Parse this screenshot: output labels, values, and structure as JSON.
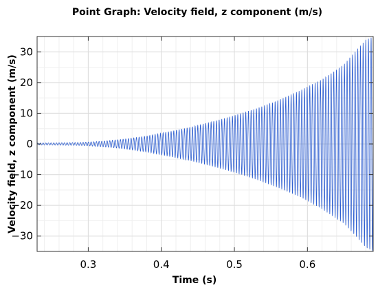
{
  "chart_data": {
    "type": "line",
    "title": "Point Graph: Velocity field, z component (m/s)",
    "xlabel": "Time (s)",
    "ylabel": "Velocity field, z component (m/s)",
    "xlim": [
      0.23,
      0.69
    ],
    "ylim": [
      -35,
      35
    ],
    "x_ticks": [
      0.3,
      0.4,
      0.5,
      0.6
    ],
    "x_tick_labels": [
      "0.3",
      "0.4",
      "0.5",
      "0.6"
    ],
    "y_ticks": [
      -30,
      -20,
      -10,
      0,
      10,
      20,
      30
    ],
    "y_tick_labels": [
      "−30",
      "−20",
      "−10",
      "0",
      "10",
      "20",
      "30"
    ],
    "grid": true,
    "series": [
      {
        "color": "#2f5fd0",
        "x": [
          0.23,
          0.26,
          0.29,
          0.32,
          0.35,
          0.38,
          0.41,
          0.44,
          0.47,
          0.5,
          0.53,
          0.56,
          0.59,
          0.62,
          0.65,
          0.665,
          0.68,
          0.69
        ],
        "y_amplitude": [
          0.3,
          0.4,
          0.5,
          0.9,
          1.6,
          2.6,
          4.0,
          5.5,
          7.3,
          9.3,
          11.6,
          14.3,
          17.4,
          21.2,
          26.0,
          30.0,
          34.0,
          35.0
        ]
      }
    ]
  }
}
